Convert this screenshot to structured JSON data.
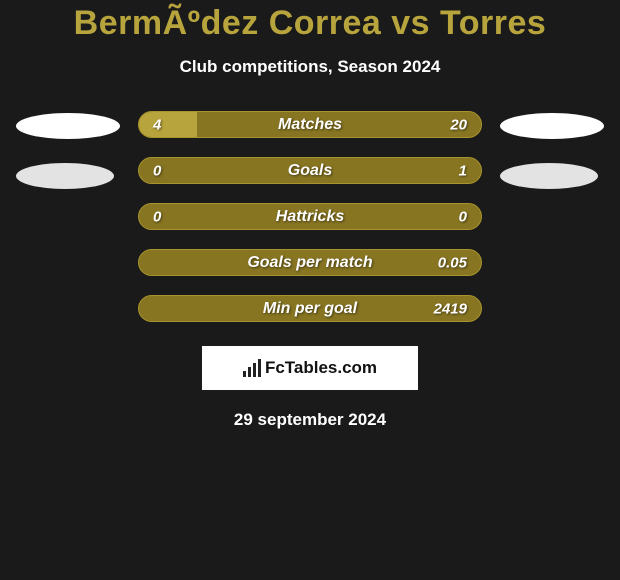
{
  "title": "BermÃºdez Correa vs Torres",
  "subtitle": "Club competitions, Season 2024",
  "colors": {
    "accent": "#b8a43c",
    "barBg": "#877522",
    "barBorder": "#a8942e",
    "background": "#1a1a1a",
    "text": "#ffffff",
    "oval": "#ffffff"
  },
  "stats": [
    {
      "label": "Matches",
      "leftVal": "4",
      "rightVal": "20",
      "leftFillPct": 17,
      "rightFillPct": 0
    },
    {
      "label": "Goals",
      "leftVal": "0",
      "rightVal": "1",
      "leftFillPct": 0,
      "rightFillPct": 0
    },
    {
      "label": "Hattricks",
      "leftVal": "0",
      "rightVal": "0",
      "leftFillPct": 0,
      "rightFillPct": 0
    },
    {
      "label": "Goals per match",
      "leftVal": "",
      "rightVal": "0.05",
      "leftFillPct": 0,
      "rightFillPct": 0
    },
    {
      "label": "Min per goal",
      "leftVal": "",
      "rightVal": "2419",
      "leftFillPct": 0,
      "rightFillPct": 0
    }
  ],
  "leftOvals": 2,
  "rightOvals": 2,
  "footer": {
    "brand": "FcTables.com"
  },
  "date": "29 september 2024"
}
